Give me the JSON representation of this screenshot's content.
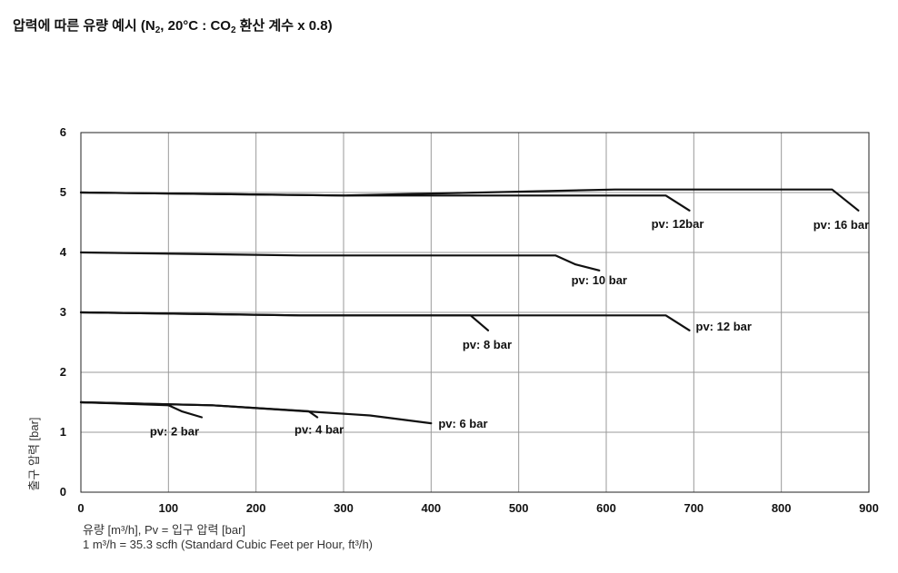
{
  "chart_data": {
    "type": "line",
    "title": "압력에 따른 유량 예시 (N₂, 20°C : CO₂ 환산 계수 x 0.8)",
    "title_parts": {
      "pre": "압력에 따른 유량 예시 (N",
      "sub1": "2",
      "mid": ", 20°C : CO",
      "sub2": "2",
      "post": " 환산 계수 x 0.8)"
    },
    "xlabel": "유량 [m³/h], Pv = 입구 압력 [bar]",
    "xlabel_note": "1 m³/h = 35.3 scfh (Standard Cubic Feet per Hour, ft³/h)",
    "ylabel": "출구 압력 [bar]",
    "xlim": [
      0,
      900
    ],
    "ylim": [
      0,
      6
    ],
    "xticks": [
      0,
      100,
      200,
      300,
      400,
      500,
      600,
      700,
      800,
      900
    ],
    "yticks": [
      0,
      1,
      2,
      3,
      4,
      5,
      6
    ],
    "grid": true,
    "series": [
      {
        "name": "pv: 2 bar",
        "points": [
          [
            0,
            1.5
          ],
          [
            100,
            1.45
          ],
          [
            115,
            1.35
          ],
          [
            138,
            1.25
          ]
        ]
      },
      {
        "name": "pv: 4 bar",
        "points": [
          [
            0,
            1.5
          ],
          [
            150,
            1.45
          ],
          [
            260,
            1.35
          ],
          [
            270,
            1.25
          ]
        ]
      },
      {
        "name": "pv: 6 bar",
        "points": [
          [
            0,
            1.5
          ],
          [
            150,
            1.45
          ],
          [
            330,
            1.28
          ],
          [
            400,
            1.15
          ]
        ]
      },
      {
        "name": "pv: 8 bar",
        "points": [
          [
            0,
            3.0
          ],
          [
            250,
            2.95
          ],
          [
            445,
            2.95
          ],
          [
            465,
            2.7
          ]
        ]
      },
      {
        "name": "pv: 12 bar",
        "points": [
          [
            0,
            3.0
          ],
          [
            250,
            2.95
          ],
          [
            668,
            2.95
          ],
          [
            695,
            2.7
          ]
        ]
      },
      {
        "name": "pv: 10 bar",
        "points": [
          [
            0,
            4.0
          ],
          [
            250,
            3.95
          ],
          [
            542,
            3.95
          ],
          [
            565,
            3.8
          ],
          [
            592,
            3.7
          ]
        ]
      },
      {
        "name": "pv: 12bar",
        "points": [
          [
            0,
            5.0
          ],
          [
            300,
            4.95
          ],
          [
            668,
            4.95
          ],
          [
            695,
            4.7
          ]
        ]
      },
      {
        "name": "pv: 16 bar",
        "points": [
          [
            0,
            5.0
          ],
          [
            300,
            4.95
          ],
          [
            610,
            5.05
          ],
          [
            858,
            5.05
          ],
          [
            888,
            4.7
          ]
        ]
      }
    ]
  }
}
